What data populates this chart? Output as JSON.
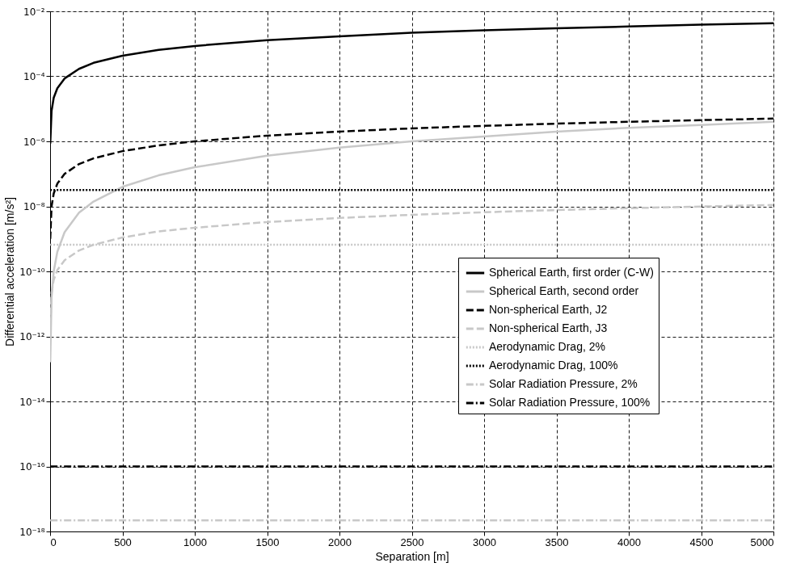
{
  "chart_data": {
    "type": "line",
    "xlabel": "Separation [m]",
    "ylabel": "Differential acceleration [m/s²]",
    "log": "y",
    "grid": true,
    "legend": "right",
    "xlim": [
      0,
      5000
    ],
    "xticks": [
      0,
      500,
      1000,
      1500,
      2000,
      2500,
      3000,
      3500,
      4000,
      4500,
      5000
    ],
    "ylim": [
      1e-18,
      0.01
    ],
    "yticks": [
      {
        "value": 1e-18,
        "label": "10⁻¹⁸"
      },
      {
        "value": 1e-16,
        "label": "10⁻¹⁶"
      },
      {
        "value": 1e-14,
        "label": "10⁻¹⁴"
      },
      {
        "value": 1e-12,
        "label": "10⁻¹²"
      },
      {
        "value": 1e-10,
        "label": "10⁻¹⁰"
      },
      {
        "value": 1e-08,
        "label": "10⁻⁸"
      },
      {
        "value": 1e-06,
        "label": "10⁻⁶"
      },
      {
        "value": 0.0001,
        "label": "10⁻⁴"
      },
      {
        "value": 0.01,
        "label": "10⁻²"
      }
    ],
    "x": [
      1,
      10,
      25,
      50,
      100,
      200,
      300,
      500,
      750,
      1000,
      1500,
      2000,
      2500,
      3000,
      3500,
      4000,
      4500,
      5000
    ],
    "series": [
      {
        "name": "Spherical Earth, first order (C-W)",
        "color": "#000000",
        "line_style": "solid",
        "values": [
          8.6e-07,
          8.6e-06,
          2.2e-05,
          4.3e-05,
          8.6e-05,
          0.00017,
          0.00026,
          0.00043,
          0.00065,
          0.00086,
          0.0013,
          0.0017,
          0.0022,
          0.0026,
          0.003,
          0.0034,
          0.0039,
          0.0043
        ]
      },
      {
        "name": "Spherical Earth, second order",
        "color": "#c8c8c8",
        "line_style": "solid",
        "values": [
          1.6e-13,
          1.6e-11,
          1e-10,
          4e-10,
          1.6e-09,
          6.4e-09,
          1.4e-08,
          4e-08,
          9e-08,
          1.6e-07,
          3.6e-07,
          6.4e-07,
          1e-06,
          1.4e-06,
          2e-06,
          2.6e-06,
          3.2e-06,
          4e-06
        ]
      },
      {
        "name": "Non-spherical Earth, J2",
        "color": "#000000",
        "line_style": "dashed",
        "values": [
          1e-09,
          1e-08,
          2.5e-08,
          5e-08,
          1e-07,
          2e-07,
          3e-07,
          5e-07,
          7.5e-07,
          1e-06,
          1.5e-06,
          2e-06,
          2.5e-06,
          3e-06,
          3.5e-06,
          4e-06,
          4.5e-06,
          5e-06
        ]
      },
      {
        "name": "Non-spherical Earth, J3",
        "color": "#c8c8c8",
        "line_style": "dashed",
        "values": [
          2.2e-12,
          2.2e-11,
          5.5e-11,
          1.1e-10,
          2.2e-10,
          4.4e-10,
          6.6e-10,
          1.1e-09,
          1.7e-09,
          2.2e-09,
          3.3e-09,
          4.4e-09,
          5.5e-09,
          6.6e-09,
          7.7e-09,
          8.8e-09,
          9.9e-09,
          1.1e-08
        ]
      },
      {
        "name": "Aerodynamic Drag, 2%",
        "color": "#c8c8c8",
        "line_style": "dotted",
        "values": [
          6.6e-10,
          6.6e-10,
          6.6e-10,
          6.6e-10,
          6.6e-10,
          6.6e-10,
          6.6e-10,
          6.6e-10,
          6.6e-10,
          6.6e-10,
          6.6e-10,
          6.6e-10,
          6.6e-10,
          6.6e-10,
          6.6e-10,
          6.6e-10,
          6.6e-10,
          6.6e-10
        ]
      },
      {
        "name": "Aerodynamic Drag, 100%",
        "color": "#000000",
        "line_style": "dotted",
        "values": [
          3.2e-08,
          3.2e-08,
          3.2e-08,
          3.2e-08,
          3.2e-08,
          3.2e-08,
          3.2e-08,
          3.2e-08,
          3.2e-08,
          3.2e-08,
          3.2e-08,
          3.2e-08,
          3.2e-08,
          3.2e-08,
          3.2e-08,
          3.2e-08,
          3.2e-08,
          3.2e-08
        ]
      },
      {
        "name": "Solar Radiation Pressure, 2%",
        "color": "#c8c8c8",
        "line_style": "dashdot",
        "values": [
          2.2e-18,
          2.2e-18,
          2.2e-18,
          2.2e-18,
          2.2e-18,
          2.2e-18,
          2.2e-18,
          2.2e-18,
          2.2e-18,
          2.2e-18,
          2.2e-18,
          2.2e-18,
          2.2e-18,
          2.2e-18,
          2.2e-18,
          2.2e-18,
          2.2e-18,
          2.2e-18
        ]
      },
      {
        "name": "Solar Radiation Pressure, 100%",
        "color": "#000000",
        "line_style": "dashdot",
        "values": [
          1e-16,
          1e-16,
          1e-16,
          1e-16,
          1e-16,
          1e-16,
          1e-16,
          1e-16,
          1e-16,
          1e-16,
          1e-16,
          1e-16,
          1e-16,
          1e-16,
          1e-16,
          1e-16,
          1e-16,
          1e-16
        ]
      }
    ]
  }
}
